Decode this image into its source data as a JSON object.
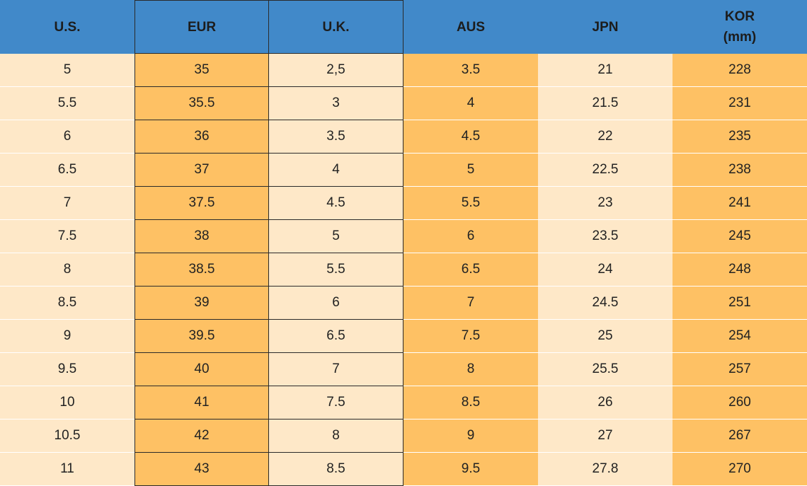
{
  "table": {
    "header": [
      "U.S.",
      "EUR",
      "U.K.",
      "AUS",
      "JPN",
      "KOR\n(mm)"
    ],
    "rows": [
      [
        "5",
        "35",
        "2,5",
        "3.5",
        "21",
        "228"
      ],
      [
        "5.5",
        "35.5",
        "3",
        "4",
        "21.5",
        "231"
      ],
      [
        "6",
        "36",
        "3.5",
        "4.5",
        "22",
        "235"
      ],
      [
        "6.5",
        "37",
        "4",
        "5",
        "22.5",
        "238"
      ],
      [
        "7",
        "37.5",
        "4.5",
        "5.5",
        "23",
        "241"
      ],
      [
        "7.5",
        "38",
        "5",
        "6",
        "23.5",
        "245"
      ],
      [
        "8",
        "38.5",
        "5.5",
        "6.5",
        "24",
        "248"
      ],
      [
        "8.5",
        "39",
        "6",
        "7",
        "24.5",
        "251"
      ],
      [
        "9",
        "39.5",
        "6.5",
        "7.5",
        "25",
        "254"
      ],
      [
        "9.5",
        "40",
        "7",
        "8",
        "25.5",
        "257"
      ],
      [
        "10",
        "41",
        "7.5",
        "8.5",
        "26",
        "260"
      ],
      [
        "10.5",
        "42",
        "8",
        "9",
        "27",
        "267"
      ],
      [
        "11",
        "43",
        "8.5",
        "9.5",
        "27.8",
        "270"
      ]
    ]
  }
}
